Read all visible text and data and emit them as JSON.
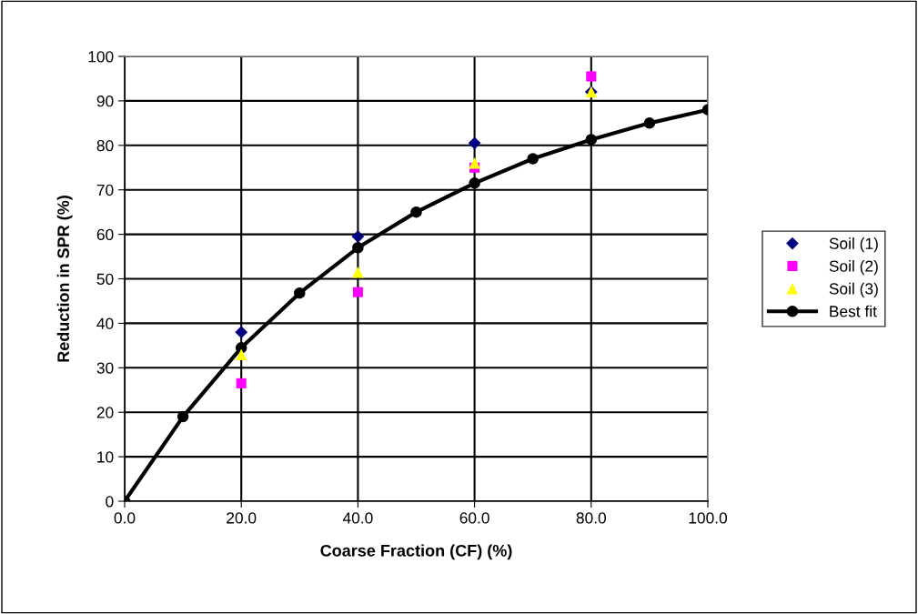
{
  "chart_data": {
    "type": "scatter",
    "xlabel": "Coarse Fraction (CF) (%)",
    "ylabel": "Reduction in SPR (%)",
    "xlim": [
      0,
      100
    ],
    "xticks": [
      {
        "value": 0,
        "label": "0.0"
      },
      {
        "value": 20,
        "label": "20.0"
      },
      {
        "value": 40,
        "label": "40.0"
      },
      {
        "value": 60,
        "label": "60.0"
      },
      {
        "value": 80,
        "label": "80.0"
      },
      {
        "value": 100,
        "label": "100.0"
      }
    ],
    "ylim": [
      0,
      100
    ],
    "yticks": [
      0,
      10,
      20,
      30,
      40,
      50,
      60,
      70,
      80,
      90,
      100
    ],
    "grid": true,
    "legend": "right",
    "series": [
      {
        "name": "Soil (1)",
        "marker": "diamond",
        "color": "#000080",
        "x": [
          20,
          40,
          60,
          80
        ],
        "values": [
          38,
          59.5,
          80.5,
          92
        ]
      },
      {
        "name": "Soil (2)",
        "marker": "square",
        "color": "#ff00ff",
        "x": [
          20,
          40,
          60,
          80
        ],
        "values": [
          26.5,
          47,
          75,
          95.5
        ]
      },
      {
        "name": "Soil (3)",
        "marker": "triangle",
        "color": "#ffff00",
        "x": [
          20,
          40,
          60,
          80
        ],
        "values": [
          33,
          51.5,
          76,
          92
        ]
      },
      {
        "name": "Best fit",
        "type": "line",
        "marker": "circle",
        "color": "#000000",
        "x": [
          0,
          10,
          20,
          30,
          40,
          50,
          60,
          70,
          80,
          90,
          100
        ],
        "values": [
          0,
          19,
          34.5,
          46.8,
          57,
          65,
          71.5,
          77,
          81.3,
          85,
          88
        ]
      }
    ]
  }
}
